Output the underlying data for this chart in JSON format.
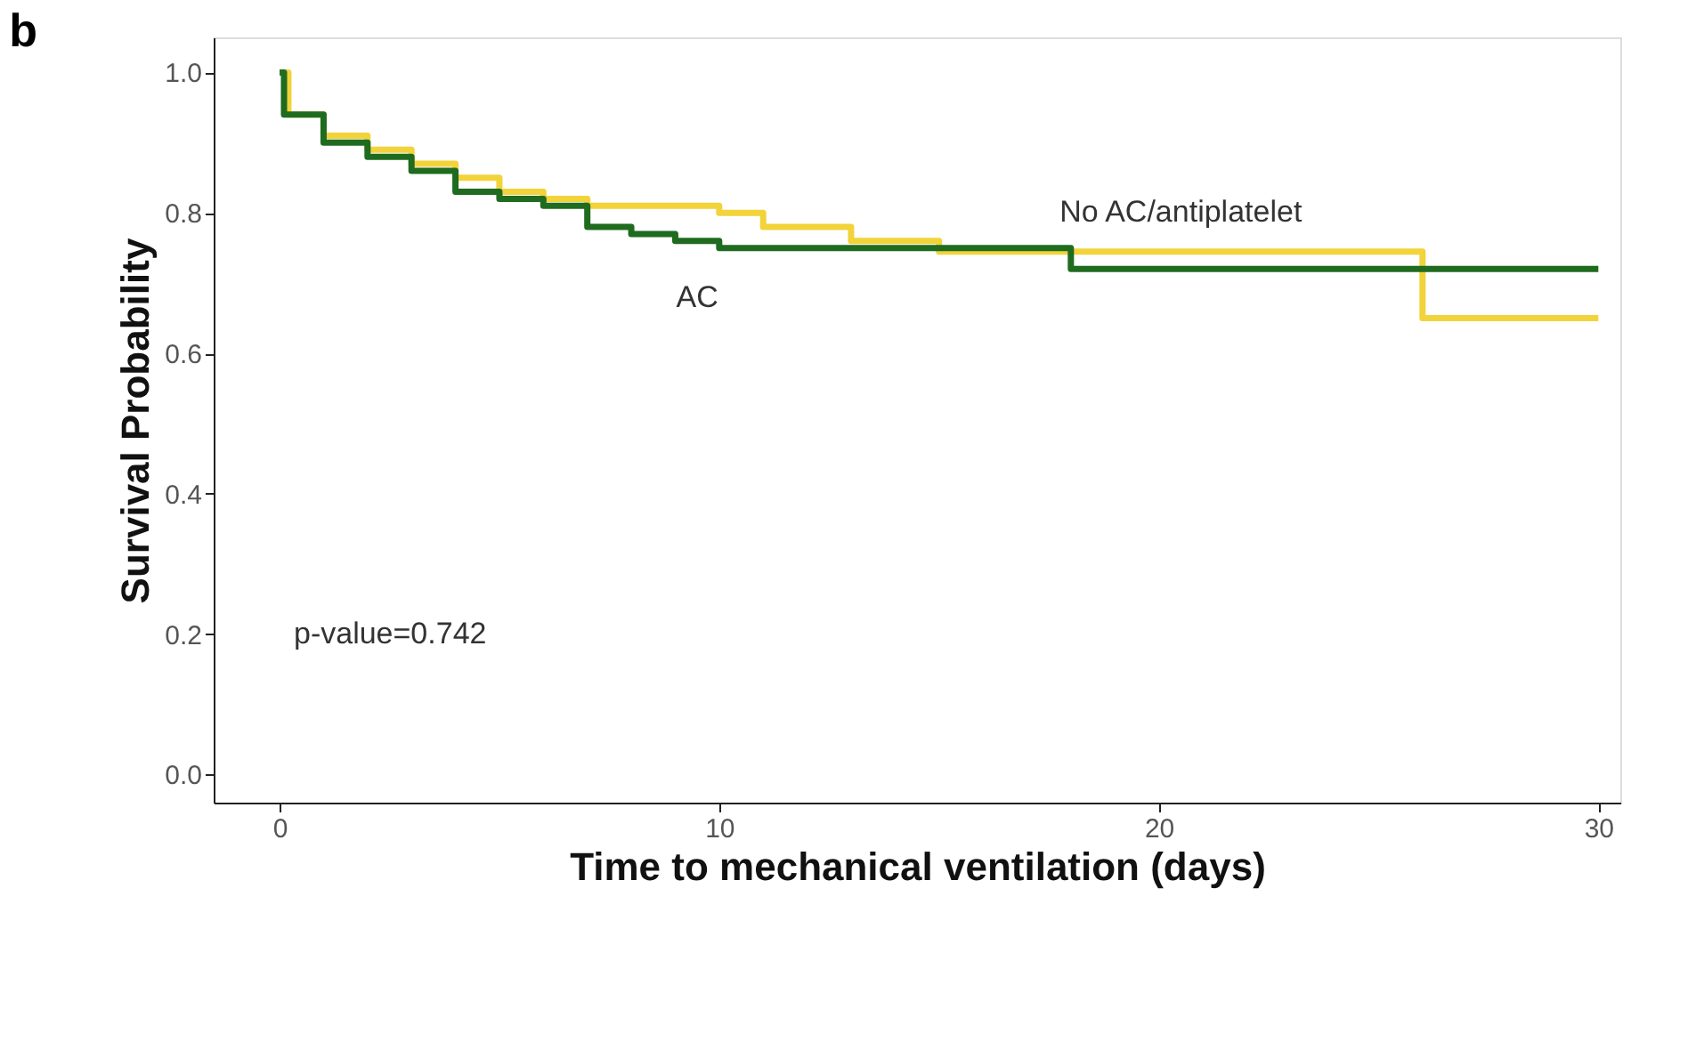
{
  "chart_data": {
    "type": "step",
    "title": "b",
    "xlabel": "Time to mechanical ventilation (days)",
    "ylabel": "Survival Probability",
    "series": [
      {
        "name": "No AC/antiplatelet",
        "color": "#f2d33a",
        "x": [
          0,
          0.2,
          1,
          2,
          3,
          4,
          5,
          6,
          7,
          10,
          11,
          13,
          15,
          26,
          30
        ],
        "values": [
          1.0,
          0.94,
          0.91,
          0.89,
          0.87,
          0.85,
          0.83,
          0.82,
          0.81,
          0.8,
          0.78,
          0.76,
          0.745,
          0.65,
          0.65
        ]
      },
      {
        "name": "AC",
        "color": "#1f6b1f",
        "x": [
          0,
          0.1,
          1,
          2,
          3,
          4,
          5,
          6,
          7,
          8,
          9,
          10,
          18,
          30
        ],
        "values": [
          1.0,
          0.94,
          0.9,
          0.88,
          0.86,
          0.83,
          0.82,
          0.81,
          0.78,
          0.77,
          0.76,
          0.75,
          0.72,
          0.72
        ]
      }
    ],
    "annotations": [
      "p-value=0.742"
    ],
    "xlim": [
      -1.5,
      30.5
    ],
    "ylim": [
      -0.04,
      1.05
    ],
    "xticks": [
      0,
      10,
      20,
      30
    ],
    "yticks": [
      {
        "value": 0,
        "label": "0.0"
      },
      {
        "value": 0.2,
        "label": "0.2"
      },
      {
        "value": 0.4,
        "label": "0.4"
      },
      {
        "value": 0.6,
        "label": "0.6"
      },
      {
        "value": 0.8,
        "label": "0.8"
      },
      {
        "value": 1,
        "label": "1.0"
      }
    ],
    "grid": false
  }
}
